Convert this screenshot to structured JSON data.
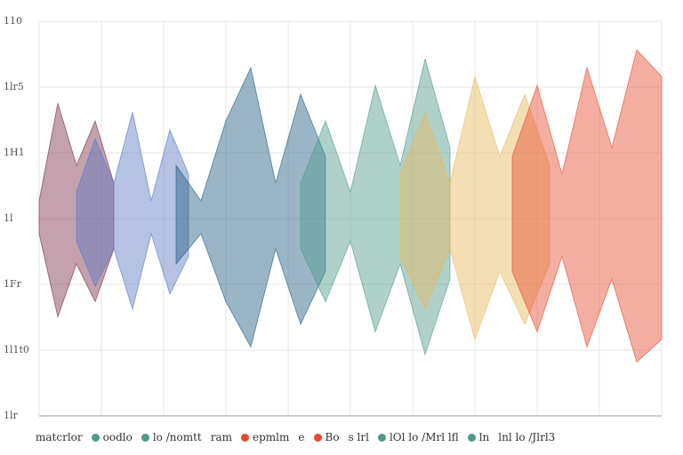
{
  "colors": {
    "background": "#ffffff",
    "grid": "#e6e6e6",
    "axis": "#bdbdbd",
    "series": [
      "#7a2f4a",
      "#5a78c0",
      "#1f5e80",
      "#4f9a8a",
      "#e7b85a",
      "#e64a2e"
    ]
  },
  "chart_data": {
    "type": "area",
    "title": "",
    "xlabel": "",
    "ylabel": "",
    "grid": true,
    "ytick_labels": [
      "110",
      "1lr5",
      "1H1",
      "1l",
      "1Fr",
      "1l1t0",
      "1lr"
    ],
    "legend": {
      "placement": "bottom",
      "entries": [
        {
          "text": "matcrlor",
          "color": ""
        },
        {
          "text": "oodlo",
          "color": "#4f9a8a"
        },
        {
          "text": "lo /nomtt",
          "color": "#4f9a8a"
        },
        {
          "text": "ram",
          "color": ""
        },
        {
          "text": "epmlm",
          "color": "#e64a2e"
        },
        {
          "text": "e",
          "color": ""
        },
        {
          "text": "Bo",
          "color": "#e64a2e"
        },
        {
          "text": "s lrl",
          "color": ""
        },
        {
          "text": "lOl lo /Mrl lfl",
          "color": "#4f9a8a"
        },
        {
          "text": "ln",
          "color": "#4f9a8a"
        },
        {
          "text": "lnl lo /Jlrl3",
          "color": ""
        }
      ]
    },
    "series": [
      {
        "color": "#7a2f4a",
        "x": [
          0.0,
          0.03,
          0.06,
          0.09,
          0.12
        ],
        "values": [
          0.1,
          0.65,
          0.3,
          0.55,
          0.2
        ]
      },
      {
        "color": "#5a78c0",
        "x": [
          0.06,
          0.09,
          0.12,
          0.15,
          0.18,
          0.21,
          0.24
        ],
        "values": [
          0.15,
          0.45,
          0.2,
          0.6,
          0.1,
          0.5,
          0.25
        ]
      },
      {
        "color": "#1f5e80",
        "x": [
          0.22,
          0.26,
          0.3,
          0.34,
          0.38,
          0.42,
          0.46
        ],
        "values": [
          0.3,
          0.1,
          0.55,
          0.85,
          0.2,
          0.7,
          0.35
        ]
      },
      {
        "color": "#4f9a8a",
        "x": [
          0.42,
          0.46,
          0.5,
          0.54,
          0.58,
          0.62,
          0.66
        ],
        "values": [
          0.2,
          0.55,
          0.15,
          0.75,
          0.3,
          0.9,
          0.4
        ]
      },
      {
        "color": "#e7b85a",
        "x": [
          0.58,
          0.62,
          0.66,
          0.7,
          0.74,
          0.78,
          0.82
        ],
        "values": [
          0.25,
          0.6,
          0.2,
          0.8,
          0.35,
          0.7,
          0.3
        ]
      },
      {
        "color": "#e64a2e",
        "x": [
          0.76,
          0.8,
          0.84,
          0.88,
          0.92,
          0.96,
          1.0
        ],
        "values": [
          0.35,
          0.75,
          0.25,
          0.85,
          0.4,
          0.95,
          0.8
        ]
      }
    ],
    "xlim": [
      0,
      1
    ],
    "ylim": [
      0,
      1
    ]
  }
}
